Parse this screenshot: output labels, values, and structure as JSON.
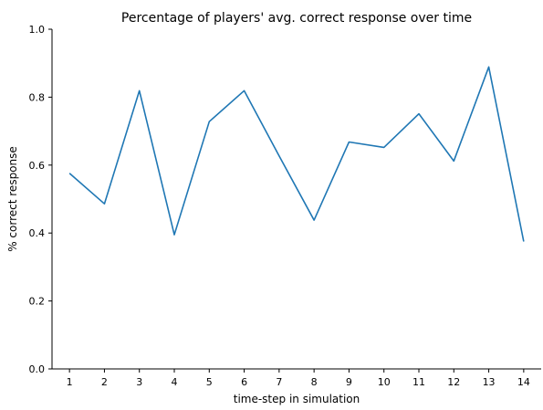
{
  "chart_data": {
    "type": "line",
    "title": "Percentage of players' avg. correct response over time",
    "xlabel": "time-step in simulation",
    "ylabel": "% correct response",
    "x": [
      1,
      2,
      3,
      4,
      5,
      6,
      7,
      8,
      9,
      10,
      11,
      12,
      13,
      14
    ],
    "series": [
      {
        "values": [
          0.576,
          0.486,
          0.819,
          0.395,
          0.728,
          0.819,
          0.627,
          0.438,
          0.668,
          0.652,
          0.751,
          0.612,
          0.889,
          0.375
        ],
        "color": "#1f77b4"
      }
    ],
    "xlim": [
      0.5,
      14.5
    ],
    "ylim": [
      0.0,
      1.0
    ],
    "xticks": [
      "1",
      "2",
      "3",
      "4",
      "5",
      "6",
      "7",
      "8",
      "9",
      "10",
      "11",
      "12",
      "13",
      "14"
    ],
    "yticks": [
      "0.0",
      "0.2",
      "0.4",
      "0.6",
      "0.8",
      "1.0"
    ],
    "grid": false,
    "legend": "none",
    "spines": "left-bottom"
  }
}
